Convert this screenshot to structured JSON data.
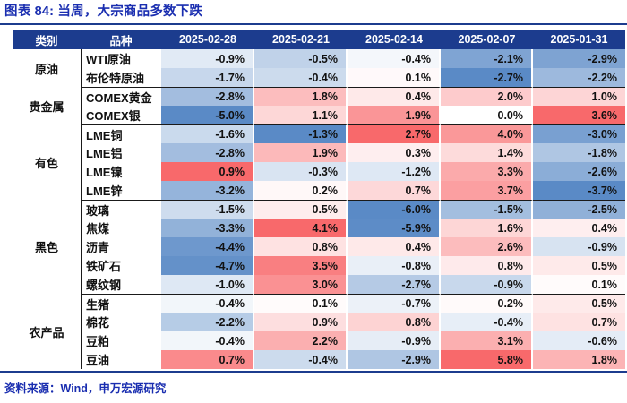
{
  "title": "图表 84: 当周，大宗商品多数下跌",
  "source": "资料来源：Wind，申万宏源研究",
  "colors": {
    "header_bg": "#1C3C8E",
    "title_text": "#1A2EB0",
    "rule": "#1C3C8E",
    "group_divider": "#1a1a1a",
    "heatmap_positive_max": "#F8696B",
    "heatmap_negative_min": "#5A8AC6",
    "heatmap_midpoint": "#FFFFFF",
    "value_text": "#111111",
    "header_text": "#FFFFFF"
  },
  "chart_data": {
    "type": "heatmap",
    "title": "图表 84: 当周，大宗商品多数下跌",
    "category_header_label": "类别",
    "row_header_label": "品种",
    "columns": [
      "2025-02-28",
      "2025-02-21",
      "2025-02-14",
      "2025-02-07",
      "2025-01-31"
    ],
    "unit": "%",
    "value_format": "one_decimal_percent",
    "color_scale": "per-column linear: blue at column min, white at 0, red at column max",
    "groups": [
      {
        "category": "原油",
        "rows": [
          {
            "name": "WTI原油",
            "values": [
              -0.9,
              -0.5,
              -0.4,
              -2.1,
              -2.9
            ]
          },
          {
            "name": "布伦特原油",
            "values": [
              -1.7,
              -0.4,
              0.1,
              -2.7,
              -2.2
            ]
          }
        ]
      },
      {
        "category": "贵金属",
        "rows": [
          {
            "name": "COMEX黄金",
            "values": [
              -2.8,
              1.8,
              0.4,
              2.0,
              1.0
            ]
          },
          {
            "name": "COMEX银",
            "values": [
              -5.0,
              1.1,
              1.9,
              0.0,
              3.6
            ]
          }
        ]
      },
      {
        "category": "有色",
        "rows": [
          {
            "name": "LME铜",
            "values": [
              -1.6,
              -1.3,
              2.7,
              4.0,
              -3.0
            ]
          },
          {
            "name": "LME铝",
            "values": [
              -2.8,
              1.9,
              0.3,
              1.4,
              -1.8
            ]
          },
          {
            "name": "LME镍",
            "values": [
              0.9,
              -0.3,
              -1.2,
              3.3,
              -2.6
            ]
          },
          {
            "name": "LME锌",
            "values": [
              -3.2,
              0.2,
              0.7,
              3.7,
              -3.7
            ]
          }
        ]
      },
      {
        "category": "黑色",
        "rows": [
          {
            "name": "玻璃",
            "values": [
              -1.5,
              0.5,
              -6.0,
              -1.5,
              -2.5
            ]
          },
          {
            "name": "焦煤",
            "values": [
              -3.3,
              4.1,
              -5.9,
              1.6,
              0.4
            ]
          },
          {
            "name": "沥青",
            "values": [
              -4.4,
              0.8,
              0.4,
              2.6,
              -0.9
            ]
          },
          {
            "name": "铁矿石",
            "values": [
              -4.7,
              3.5,
              -0.8,
              0.8,
              0.5
            ]
          },
          {
            "name": "螺纹钢",
            "values": [
              -1.0,
              3.0,
              -2.7,
              -0.9,
              0.1
            ]
          }
        ]
      },
      {
        "category": "农产品",
        "rows": [
          {
            "name": "生猪",
            "values": [
              -0.4,
              0.1,
              -0.7,
              0.2,
              0.5
            ]
          },
          {
            "name": "棉花",
            "values": [
              -2.2,
              0.9,
              0.8,
              -0.4,
              0.7
            ]
          },
          {
            "name": "豆粕",
            "values": [
              -0.4,
              2.2,
              -0.9,
              3.1,
              -0.6
            ]
          },
          {
            "name": "豆油",
            "values": [
              0.7,
              -0.4,
              -2.9,
              5.8,
              1.8
            ]
          }
        ]
      }
    ]
  }
}
